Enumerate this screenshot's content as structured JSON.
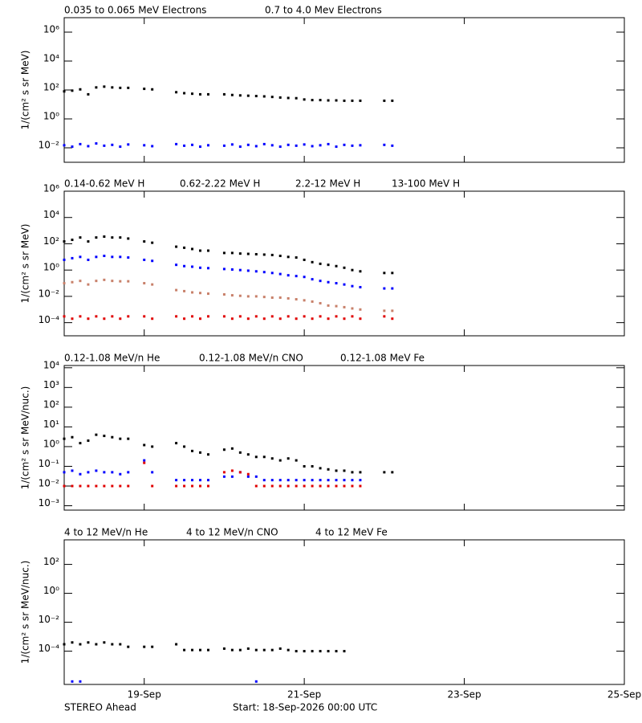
{
  "chart_data": [
    {
      "type": "scatter",
      "log_y": true,
      "ylabel": "1/(cm² s sr MeV)",
      "xlim": [
        0,
        7
      ],
      "ylim": [
        0.001,
        10000000
      ],
      "yticks": [
        {
          "value": 0.01,
          "label": "10⁻²"
        },
        {
          "value": 1,
          "label": "10⁰"
        },
        {
          "value": 100,
          "label": "10²"
        },
        {
          "value": 10000,
          "label": "10⁴"
        },
        {
          "value": 1000000,
          "label": "10⁶"
        }
      ],
      "x": [
        0,
        0.1,
        0.2,
        0.3,
        0.4,
        0.5,
        0.6,
        0.7,
        0.8,
        0.9,
        1,
        1.1,
        1.2,
        1.3,
        1.4,
        1.5,
        1.6,
        1.7,
        1.8,
        1.9,
        2,
        2.1,
        2.2,
        2.3,
        2.4,
        2.5,
        2.6,
        2.7,
        2.8,
        2.9,
        3,
        3.1,
        3.2,
        3.3,
        3.4,
        3.5,
        3.6,
        3.7,
        3.8,
        3.9,
        4,
        4.1
      ],
      "series": [
        {
          "name": "0.035 to 0.065 MeV Electrons",
          "color": "#000000",
          "values": [
            80,
            90,
            110,
            50,
            150,
            170,
            150,
            140,
            140,
            null,
            120,
            110,
            null,
            null,
            70,
            60,
            55,
            50,
            50,
            null,
            50,
            45,
            42,
            40,
            38,
            36,
            33,
            30,
            28,
            27,
            22,
            20,
            20,
            19,
            19,
            18,
            18,
            18,
            null,
            null,
            18,
            18
          ]
        },
        {
          "name": "0.7 to 4.0 Mev Electrons",
          "color": "#0000ff",
          "values": [
            0.015,
            0.012,
            0.018,
            0.013,
            0.02,
            0.014,
            0.016,
            0.012,
            0.017,
            null,
            0.015,
            0.013,
            null,
            null,
            0.018,
            0.014,
            0.016,
            0.012,
            0.015,
            null,
            0.014,
            0.017,
            0.012,
            0.016,
            0.013,
            0.018,
            0.015,
            0.012,
            0.016,
            0.014,
            0.017,
            0.013,
            0.015,
            0.018,
            0.012,
            0.016,
            0.014,
            0.015,
            null,
            null,
            0.016,
            0.014
          ]
        }
      ]
    },
    {
      "type": "scatter",
      "log_y": true,
      "ylabel": "1/(cm² s sr MeV)",
      "xlim": [
        0,
        7
      ],
      "ylim": [
        1e-05,
        1000000
      ],
      "yticks": [
        {
          "value": 0.0001,
          "label": "10⁻⁴"
        },
        {
          "value": 0.01,
          "label": "10⁻²"
        },
        {
          "value": 1,
          "label": "10⁰"
        },
        {
          "value": 100,
          "label": "10²"
        },
        {
          "value": 10000,
          "label": "10⁴"
        },
        {
          "value": 1000000,
          "label": "10⁶"
        }
      ],
      "x": [
        0,
        0.1,
        0.2,
        0.3,
        0.4,
        0.5,
        0.6,
        0.7,
        0.8,
        0.9,
        1,
        1.1,
        1.2,
        1.3,
        1.4,
        1.5,
        1.6,
        1.7,
        1.8,
        1.9,
        2,
        2.1,
        2.2,
        2.3,
        2.4,
        2.5,
        2.6,
        2.7,
        2.8,
        2.9,
        3,
        3.1,
        3.2,
        3.3,
        3.4,
        3.5,
        3.6,
        3.7,
        3.8,
        3.9,
        4,
        4.1
      ],
      "series": [
        {
          "name": "0.14-0.62 MeV H",
          "color": "#000000",
          "values": [
            150,
            200,
            300,
            150,
            300,
            350,
            300,
            300,
            250,
            null,
            150,
            120,
            null,
            null,
            60,
            50,
            40,
            30,
            30,
            null,
            20,
            20,
            18,
            17,
            16,
            15,
            14,
            12,
            10,
            9,
            6,
            4,
            3,
            2.5,
            2,
            1.5,
            1,
            0.8,
            null,
            null,
            0.6,
            0.6
          ]
        },
        {
          "name": "0.62-2.22 MeV H",
          "color": "#0000ff",
          "values": [
            6,
            8,
            10,
            6,
            10,
            12,
            10,
            10,
            9,
            null,
            6,
            5,
            null,
            null,
            2.5,
            2,
            1.8,
            1.5,
            1.4,
            null,
            1.2,
            1.1,
            1,
            0.9,
            0.8,
            0.7,
            0.6,
            0.5,
            0.4,
            0.35,
            0.3,
            0.2,
            0.15,
            0.12,
            0.1,
            0.08,
            0.06,
            0.05,
            null,
            null,
            0.04,
            0.04
          ]
        },
        {
          "name": "2.2-12 MeV H",
          "color": "#c8806a",
          "values": [
            0.1,
            0.12,
            0.15,
            0.08,
            0.15,
            0.18,
            0.15,
            0.14,
            0.14,
            null,
            0.1,
            0.08,
            null,
            null,
            0.03,
            0.025,
            0.02,
            0.018,
            0.016,
            null,
            0.014,
            0.012,
            0.011,
            0.01,
            0.01,
            0.009,
            0.008,
            0.008,
            0.007,
            0.006,
            0.005,
            0.004,
            0.003,
            0.002,
            0.0018,
            0.0015,
            0.0012,
            0.001,
            null,
            null,
            0.0008,
            0.0008
          ]
        },
        {
          "name": "13-100 MeV H",
          "color": "#e00000",
          "values": [
            0.0003,
            0.0002,
            0.0003,
            0.0002,
            0.0003,
            0.0002,
            0.0003,
            0.0002,
            0.0003,
            null,
            0.0003,
            0.0002,
            null,
            null,
            0.0003,
            0.0002,
            0.0003,
            0.0002,
            0.0003,
            null,
            0.0003,
            0.0002,
            0.0003,
            0.0002,
            0.0003,
            0.0002,
            0.0003,
            0.0002,
            0.0003,
            0.0002,
            0.0003,
            0.0002,
            0.0003,
            0.0002,
            0.0003,
            0.0002,
            0.0003,
            0.0002,
            null,
            null,
            0.0003,
            0.0002
          ]
        }
      ]
    },
    {
      "type": "scatter",
      "log_y": true,
      "ylabel": "1/(cm² s sr MeV/nuc.)",
      "xlim": [
        0,
        7
      ],
      "ylim": [
        0.0006,
        13000
      ],
      "yticks": [
        {
          "value": 0.001,
          "label": "10⁻³"
        },
        {
          "value": 0.01,
          "label": "10⁻²"
        },
        {
          "value": 0.1,
          "label": "10⁻¹"
        },
        {
          "value": 1,
          "label": "10⁰"
        },
        {
          "value": 10,
          "label": "10¹"
        },
        {
          "value": 100,
          "label": "10²"
        },
        {
          "value": 1000,
          "label": "10³"
        },
        {
          "value": 10000,
          "label": "10⁴"
        }
      ],
      "x": [
        0,
        0.1,
        0.2,
        0.3,
        0.4,
        0.5,
        0.6,
        0.7,
        0.8,
        0.9,
        1,
        1.1,
        1.2,
        1.3,
        1.4,
        1.5,
        1.6,
        1.7,
        1.8,
        1.9,
        2,
        2.1,
        2.2,
        2.3,
        2.4,
        2.5,
        2.6,
        2.7,
        2.8,
        2.9,
        3,
        3.1,
        3.2,
        3.3,
        3.4,
        3.5,
        3.6,
        3.7,
        3.8,
        3.9,
        4,
        4.1
      ],
      "series": [
        {
          "name": "0.12-1.08 MeV/n He",
          "color": "#000000",
          "values": [
            2.5,
            3,
            1.5,
            2,
            4,
            3.5,
            3,
            2.5,
            2.5,
            null,
            1.2,
            1,
            null,
            null,
            1.5,
            1,
            0.6,
            0.5,
            0.4,
            null,
            0.7,
            0.8,
            0.5,
            0.4,
            0.3,
            0.3,
            0.25,
            0.2,
            0.25,
            0.2,
            0.1,
            0.1,
            0.08,
            0.07,
            0.06,
            0.06,
            0.05,
            0.05,
            null,
            null,
            0.05,
            0.05
          ]
        },
        {
          "name": "0.12-1.08 MeV/n CNO",
          "color": "#0000ff",
          "values": [
            0.05,
            0.06,
            0.04,
            0.05,
            0.06,
            0.05,
            0.05,
            0.04,
            0.05,
            null,
            0.2,
            0.05,
            null,
            null,
            0.02,
            0.02,
            0.02,
            0.02,
            0.02,
            null,
            0.03,
            0.03,
            0.05,
            0.03,
            0.03,
            0.02,
            0.02,
            0.02,
            0.02,
            0.02,
            0.02,
            0.02,
            0.02,
            0.02,
            0.02,
            0.02,
            0.02,
            0.02,
            null,
            null,
            null,
            null
          ]
        },
        {
          "name": "0.12-1.08 MeV Fe",
          "color": "#e00000",
          "values": [
            0.01,
            0.01,
            0.01,
            0.01,
            0.01,
            0.01,
            0.01,
            0.01,
            0.01,
            null,
            0.15,
            0.01,
            null,
            null,
            0.01,
            0.01,
            0.01,
            0.01,
            0.01,
            null,
            0.05,
            0.06,
            0.05,
            0.04,
            0.01,
            0.01,
            0.01,
            0.01,
            0.01,
            0.01,
            0.01,
            0.01,
            0.01,
            0.01,
            0.01,
            0.01,
            0.01,
            0.01,
            null,
            null,
            null,
            null
          ]
        }
      ]
    },
    {
      "type": "scatter",
      "log_y": true,
      "ylabel": "1/(cm² s sr MeV/nuc.)",
      "xlim": [
        0,
        7
      ],
      "ylim": [
        5e-07,
        5000
      ],
      "yticks": [
        {
          "value": 0.0001,
          "label": "10⁻⁴"
        },
        {
          "value": 0.01,
          "label": "10⁻²"
        },
        {
          "value": 1,
          "label": "10⁰"
        },
        {
          "value": 100,
          "label": "10²"
        }
      ],
      "xticks": [
        {
          "value": 1,
          "label": "19-Sep"
        },
        {
          "value": 3,
          "label": "21-Sep"
        },
        {
          "value": 5,
          "label": "23-Sep"
        },
        {
          "value": 7,
          "label": "25-Sep"
        }
      ],
      "x": [
        0,
        0.1,
        0.2,
        0.3,
        0.4,
        0.5,
        0.6,
        0.7,
        0.8,
        0.9,
        1,
        1.1,
        1.2,
        1.3,
        1.4,
        1.5,
        1.6,
        1.7,
        1.8,
        1.9,
        2,
        2.1,
        2.2,
        2.3,
        2.4,
        2.5,
        2.6,
        2.7,
        2.8,
        2.9,
        3,
        3.1,
        3.2,
        3.3,
        3.4,
        3.5,
        3.6,
        3.7,
        3.8,
        3.9,
        4,
        4.1
      ],
      "series": [
        {
          "name": "4 to 12 MeV/n He",
          "color": "#000000",
          "values": [
            0.0003,
            0.0004,
            0.0003,
            0.0004,
            0.0003,
            0.0004,
            0.0003,
            0.0003,
            0.0002,
            null,
            0.0002,
            0.0002,
            null,
            null,
            0.0003,
            0.00012,
            0.00012,
            0.00012,
            0.00012,
            null,
            0.00015,
            0.00012,
            0.00012,
            0.00015,
            0.00012,
            0.00012,
            0.00012,
            0.00015,
            0.00012,
            0.0001,
            0.0001,
            0.0001,
            0.0001,
            0.0001,
            0.0001,
            0.0001,
            null,
            null,
            null,
            null,
            null,
            null
          ]
        },
        {
          "name": "4 to 12 MeV/n CNO",
          "color": "#0000ff",
          "values": [
            null,
            8e-07,
            8e-07,
            null,
            null,
            null,
            null,
            null,
            null,
            null,
            null,
            null,
            null,
            null,
            null,
            null,
            null,
            null,
            null,
            null,
            null,
            null,
            null,
            null,
            8e-07,
            null,
            null,
            null,
            null,
            null,
            null,
            null,
            null,
            null,
            null,
            null,
            null,
            null,
            null,
            null,
            null,
            null
          ]
        },
        {
          "name": "4 to 12 MeV Fe",
          "color": "#e00000",
          "values": [
            null,
            null,
            null,
            null,
            null,
            null,
            null,
            null,
            null,
            null,
            null,
            null,
            null,
            null,
            null,
            null,
            null,
            null,
            null,
            null,
            null,
            null,
            null,
            null,
            null,
            null,
            null,
            null,
            null,
            null,
            null,
            null,
            null,
            null,
            null,
            null,
            null,
            null,
            null,
            null,
            null,
            null
          ]
        }
      ]
    }
  ],
  "footer": {
    "spacecraft": "STEREO Ahead",
    "start": "Start: 18-Sep-2026 00:00 UTC"
  }
}
